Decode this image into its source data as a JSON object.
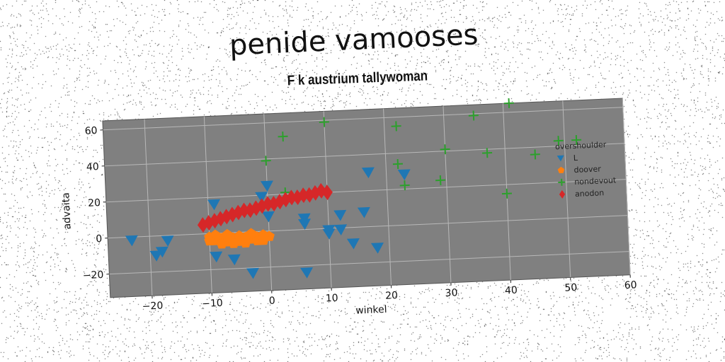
{
  "chart_data": {
    "type": "scatter",
    "title": "penide vamooses",
    "subtitle": "F k austrium tallywoman",
    "xlabel": "winkel",
    "ylabel": "advaita",
    "xlim": [
      -27,
      60
    ],
    "ylim": [
      -33,
      65
    ],
    "xticks": [
      -20,
      -10,
      0,
      10,
      20,
      30,
      40,
      50,
      60
    ],
    "yticks": [
      -20,
      0,
      20,
      40,
      60
    ],
    "grid": true,
    "background": "#808080",
    "legend": {
      "title": "overshoulder",
      "position": "right"
    },
    "series": [
      {
        "name": "L",
        "marker": "triangle-down",
        "color": "#1f77b4",
        "points": [
          [
            -23,
            -2
          ],
          [
            -19,
            -11
          ],
          [
            -18,
            -9
          ],
          [
            -17,
            -3
          ],
          [
            -9,
            16
          ],
          [
            -9,
            -13
          ],
          [
            -6,
            -15
          ],
          [
            -3,
            -23
          ],
          [
            -1,
            19
          ],
          [
            0,
            25
          ],
          [
            0,
            8
          ],
          [
            6,
            6
          ],
          [
            6,
            3
          ],
          [
            6,
            -24
          ],
          [
            10,
            -3
          ],
          [
            10,
            -1
          ],
          [
            12,
            7
          ],
          [
            12,
            -1
          ],
          [
            14,
            -9
          ],
          [
            16,
            8
          ],
          [
            17,
            30
          ],
          [
            18,
            -12
          ],
          [
            23,
            28
          ]
        ]
      },
      {
        "name": "doover",
        "marker": "pentagon",
        "color": "#ff7f0e",
        "points": [
          [
            -10,
            -2
          ],
          [
            -9,
            -4
          ],
          [
            -8,
            -3
          ],
          [
            -7,
            -5
          ],
          [
            -6,
            -3
          ],
          [
            -5,
            -2
          ],
          [
            -4,
            -6
          ],
          [
            -3,
            -4
          ],
          [
            -2,
            -3
          ],
          [
            -1,
            -5
          ],
          [
            0,
            -3
          ],
          [
            -9,
            -1
          ],
          [
            -7,
            -1
          ],
          [
            -5,
            -5
          ],
          [
            -3,
            -1
          ],
          [
            -1,
            -2
          ],
          [
            -8,
            -6
          ],
          [
            -6,
            -6
          ],
          [
            -4,
            -3
          ],
          [
            -2,
            -5
          ],
          [
            -10,
            -4
          ],
          [
            -1,
            -4
          ],
          [
            -7,
            -2
          ]
        ]
      },
      {
        "name": "nondevout",
        "marker": "plus",
        "color": "#2ca02c",
        "points": [
          [
            3,
            52
          ],
          [
            10,
            59
          ],
          [
            22,
            55
          ],
          [
            35,
            59
          ],
          [
            41,
            65
          ],
          [
            0,
            39
          ],
          [
            3,
            21
          ],
          [
            22,
            34
          ],
          [
            23,
            22
          ],
          [
            29,
            24
          ],
          [
            30,
            41
          ],
          [
            37,
            38
          ],
          [
            45,
            36
          ],
          [
            49,
            43
          ],
          [
            52,
            43
          ],
          [
            40,
            15
          ]
        ]
      },
      {
        "name": "anodon",
        "marker": "diamond",
        "color": "#d62728",
        "points": [
          [
            -11,
            5
          ],
          [
            -10,
            6
          ],
          [
            -9,
            7
          ],
          [
            -8,
            8
          ],
          [
            -7,
            9
          ],
          [
            -6,
            10
          ],
          [
            -5,
            11
          ],
          [
            -4,
            12
          ],
          [
            -3,
            12
          ],
          [
            -2,
            13
          ],
          [
            -1,
            14
          ],
          [
            0,
            15
          ],
          [
            1,
            15
          ],
          [
            2,
            16
          ],
          [
            3,
            17
          ],
          [
            4,
            18
          ],
          [
            5,
            18
          ],
          [
            6,
            19
          ],
          [
            7,
            19
          ],
          [
            8,
            20
          ],
          [
            9,
            21
          ],
          [
            10,
            20
          ]
        ]
      }
    ]
  }
}
